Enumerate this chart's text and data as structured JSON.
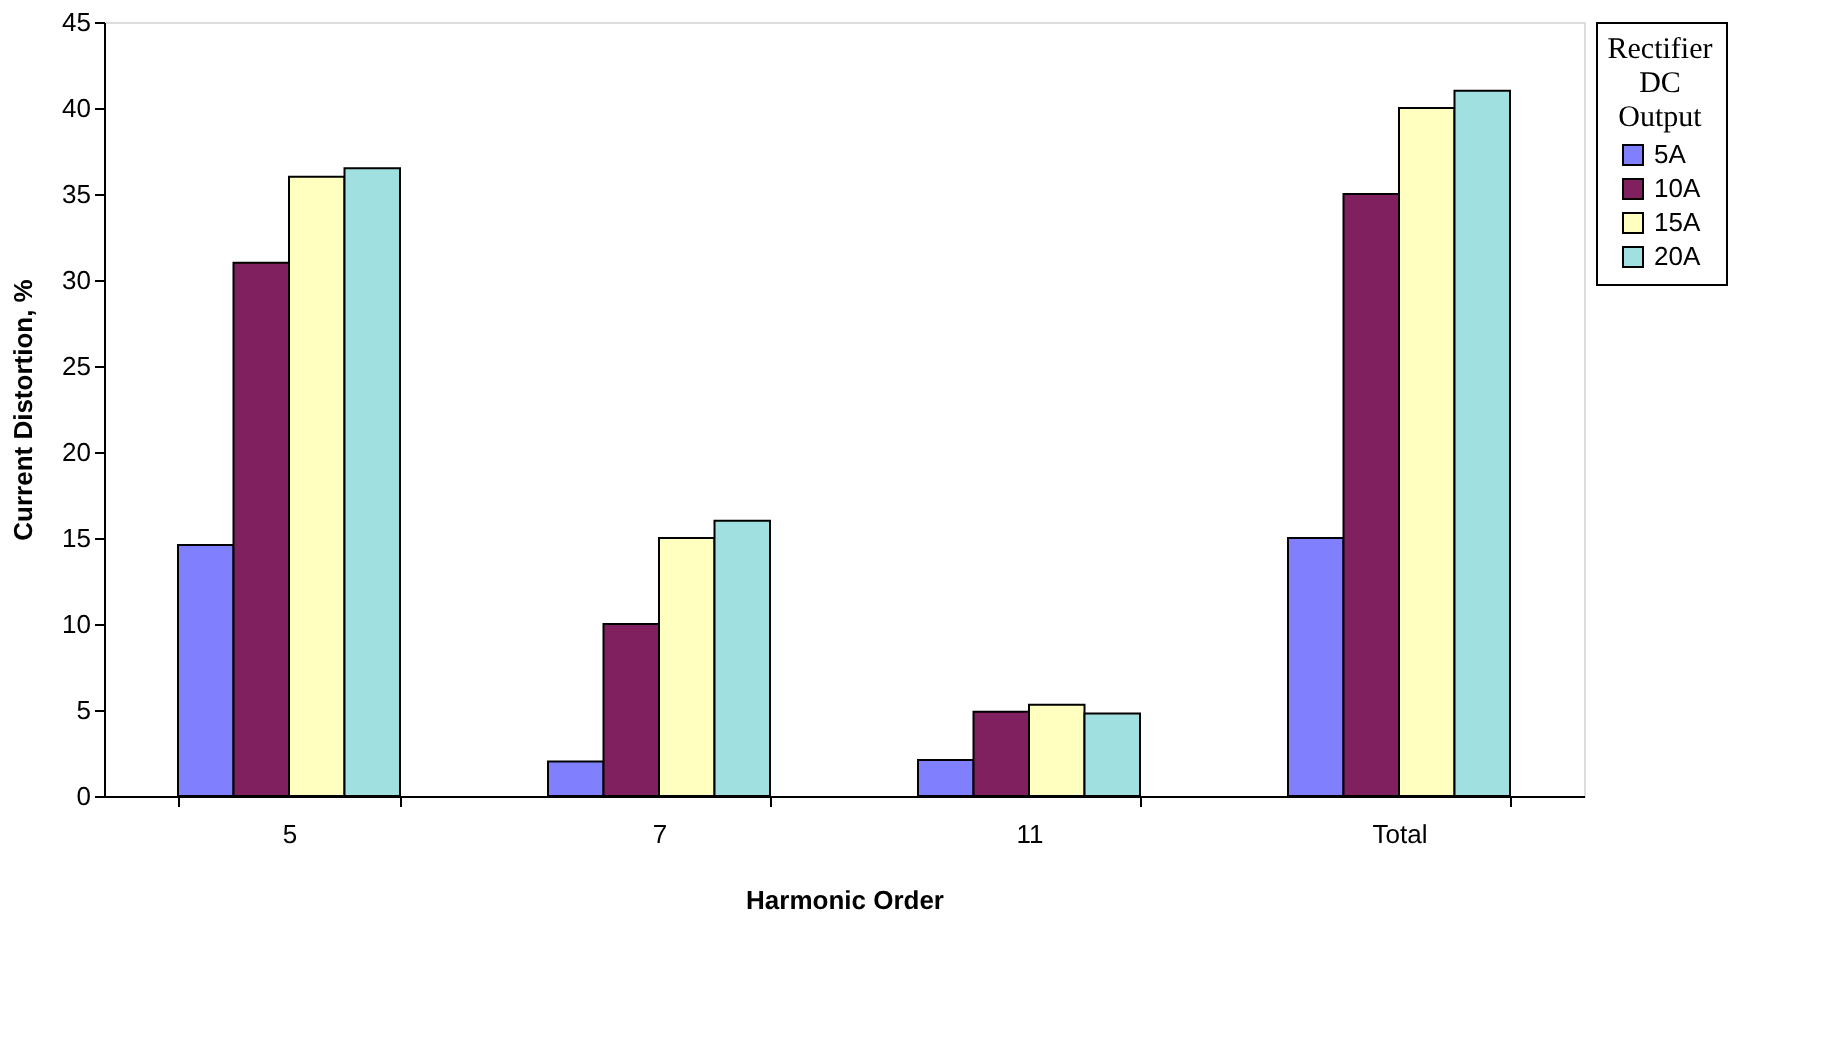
{
  "chart_data": {
    "type": "bar",
    "xlabel": "Harmonic Order",
    "ylabel": "Current Distortion, %",
    "legend_title": "Rectifier DC Output",
    "categories": [
      "5",
      "7",
      "11",
      "Total"
    ],
    "series": [
      {
        "name": "5A",
        "color": "#8080ff",
        "values": [
          14.6,
          2,
          2.1,
          15
        ]
      },
      {
        "name": "10A",
        "color": "#80205f",
        "values": [
          31,
          10,
          4.9,
          35
        ]
      },
      {
        "name": "15A",
        "color": "#ffffc0",
        "values": [
          36,
          15,
          5.3,
          40
        ]
      },
      {
        "name": "20A",
        "color": "#a0e0e0",
        "values": [
          36.5,
          16,
          4.8,
          41
        ]
      }
    ],
    "ylim": [
      0,
      45
    ],
    "yticks": [
      0,
      5,
      10,
      15,
      20,
      25,
      30,
      35,
      40,
      45
    ],
    "grid": false,
    "legend": "right"
  }
}
